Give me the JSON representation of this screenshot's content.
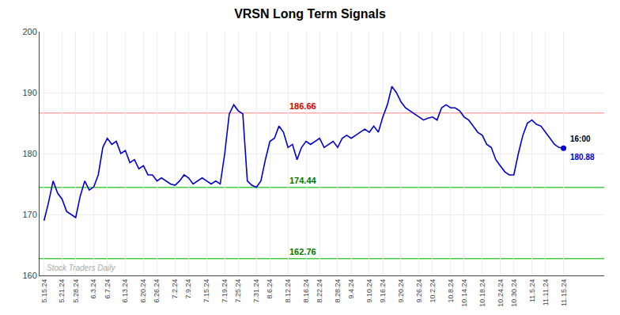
{
  "chart_data": {
    "type": "line",
    "title": "VRSN Long Term Signals",
    "categories": [
      "5.15.24",
      null,
      null,
      null,
      "5.21.24",
      null,
      null,
      "5.28.24",
      null,
      null,
      null,
      "6.3.24",
      null,
      null,
      "6.7.24",
      null,
      null,
      null,
      "6.13.24",
      null,
      null,
      null,
      "6.20.24",
      null,
      null,
      "6.26.24",
      null,
      null,
      null,
      "7.2.24",
      null,
      null,
      "7.9.24",
      null,
      null,
      null,
      "7.15.24",
      null,
      null,
      null,
      "7.19.24",
      null,
      null,
      "7.25.24",
      null,
      null,
      null,
      "7.31.24",
      null,
      null,
      "8.6.24",
      null,
      null,
      null,
      "8.12.24",
      null,
      null,
      null,
      "8.16.24",
      null,
      null,
      "8.22.24",
      null,
      null,
      null,
      "8.28.24",
      null,
      null,
      "9.4.24",
      null,
      null,
      null,
      "9.10.24",
      null,
      null,
      "9.16.24",
      null,
      null,
      null,
      "9.20.24",
      null,
      null,
      null,
      "9.26.24",
      null,
      null,
      "10.2.24",
      null,
      null,
      null,
      "10.8.24",
      null,
      null,
      "10.14.24",
      null,
      null,
      null,
      "10.18.24",
      null,
      null,
      null,
      "10.24.24",
      null,
      null,
      "10.30.24",
      null,
      null,
      null,
      "11.5.24",
      null,
      null,
      "11.11.24",
      null,
      null,
      null,
      "11.15.24"
    ],
    "series": [
      {
        "color": "#0000cc",
        "values": [
          169.0,
          172.0,
          175.5,
          173.5,
          172.5,
          170.5,
          170.0,
          169.5,
          173.0,
          175.5,
          174.0,
          174.5,
          176.5,
          181.0,
          182.5,
          181.5,
          182.0,
          180.0,
          180.5,
          178.5,
          179.0,
          177.5,
          178.0,
          176.5,
          176.5,
          175.5,
          176.0,
          175.5,
          175.0,
          174.8,
          175.5,
          176.5,
          176.0,
          175.0,
          175.5,
          176.0,
          175.5,
          175.0,
          175.5,
          175.0,
          180.0,
          186.5,
          188.0,
          187.0,
          186.5,
          175.5,
          174.8,
          174.44,
          175.5,
          179.0,
          182.0,
          182.5,
          184.5,
          183.5,
          181.0,
          181.5,
          179.0,
          181.0,
          182.0,
          181.5,
          182.0,
          182.5,
          181.0,
          181.5,
          182.0,
          181.0,
          182.5,
          183.0,
          182.5,
          183.0,
          183.5,
          184.0,
          183.5,
          184.5,
          183.5,
          186.0,
          188.0,
          191.0,
          190.0,
          188.5,
          187.5,
          187.0,
          186.5,
          186.0,
          185.5,
          185.8,
          186.0,
          185.5,
          187.5,
          188.0,
          187.5,
          187.5,
          187.0,
          186.0,
          185.5,
          184.5,
          183.5,
          183.0,
          181.5,
          181.0,
          179.0,
          178.0,
          177.0,
          176.5,
          176.5,
          180.0,
          183.0,
          185.0,
          185.5,
          184.8,
          184.5,
          183.5,
          182.5,
          181.5,
          181.0,
          180.88
        ]
      }
    ],
    "ylim": [
      160,
      200
    ],
    "yticks": [
      160,
      170,
      180,
      190,
      200
    ],
    "grid": true,
    "reference_lines": [
      {
        "value": 186.66,
        "label": "186.66",
        "color": "#ffaaaa",
        "label_color": "#cc0000"
      },
      {
        "value": 174.44,
        "label": "174.44",
        "color": "#44cc44",
        "label_color": "#007700"
      },
      {
        "value": 162.76,
        "label": "162.76",
        "color": "#44cc44",
        "label_color": "#007700"
      }
    ],
    "end_labels": [
      {
        "text": "16:00",
        "color": "#000000"
      },
      {
        "text": "180.88",
        "color": "#0000cc"
      }
    ],
    "watermark": {
      "text": "Stock Traders Daily",
      "color": "#aaaaaa"
    }
  }
}
